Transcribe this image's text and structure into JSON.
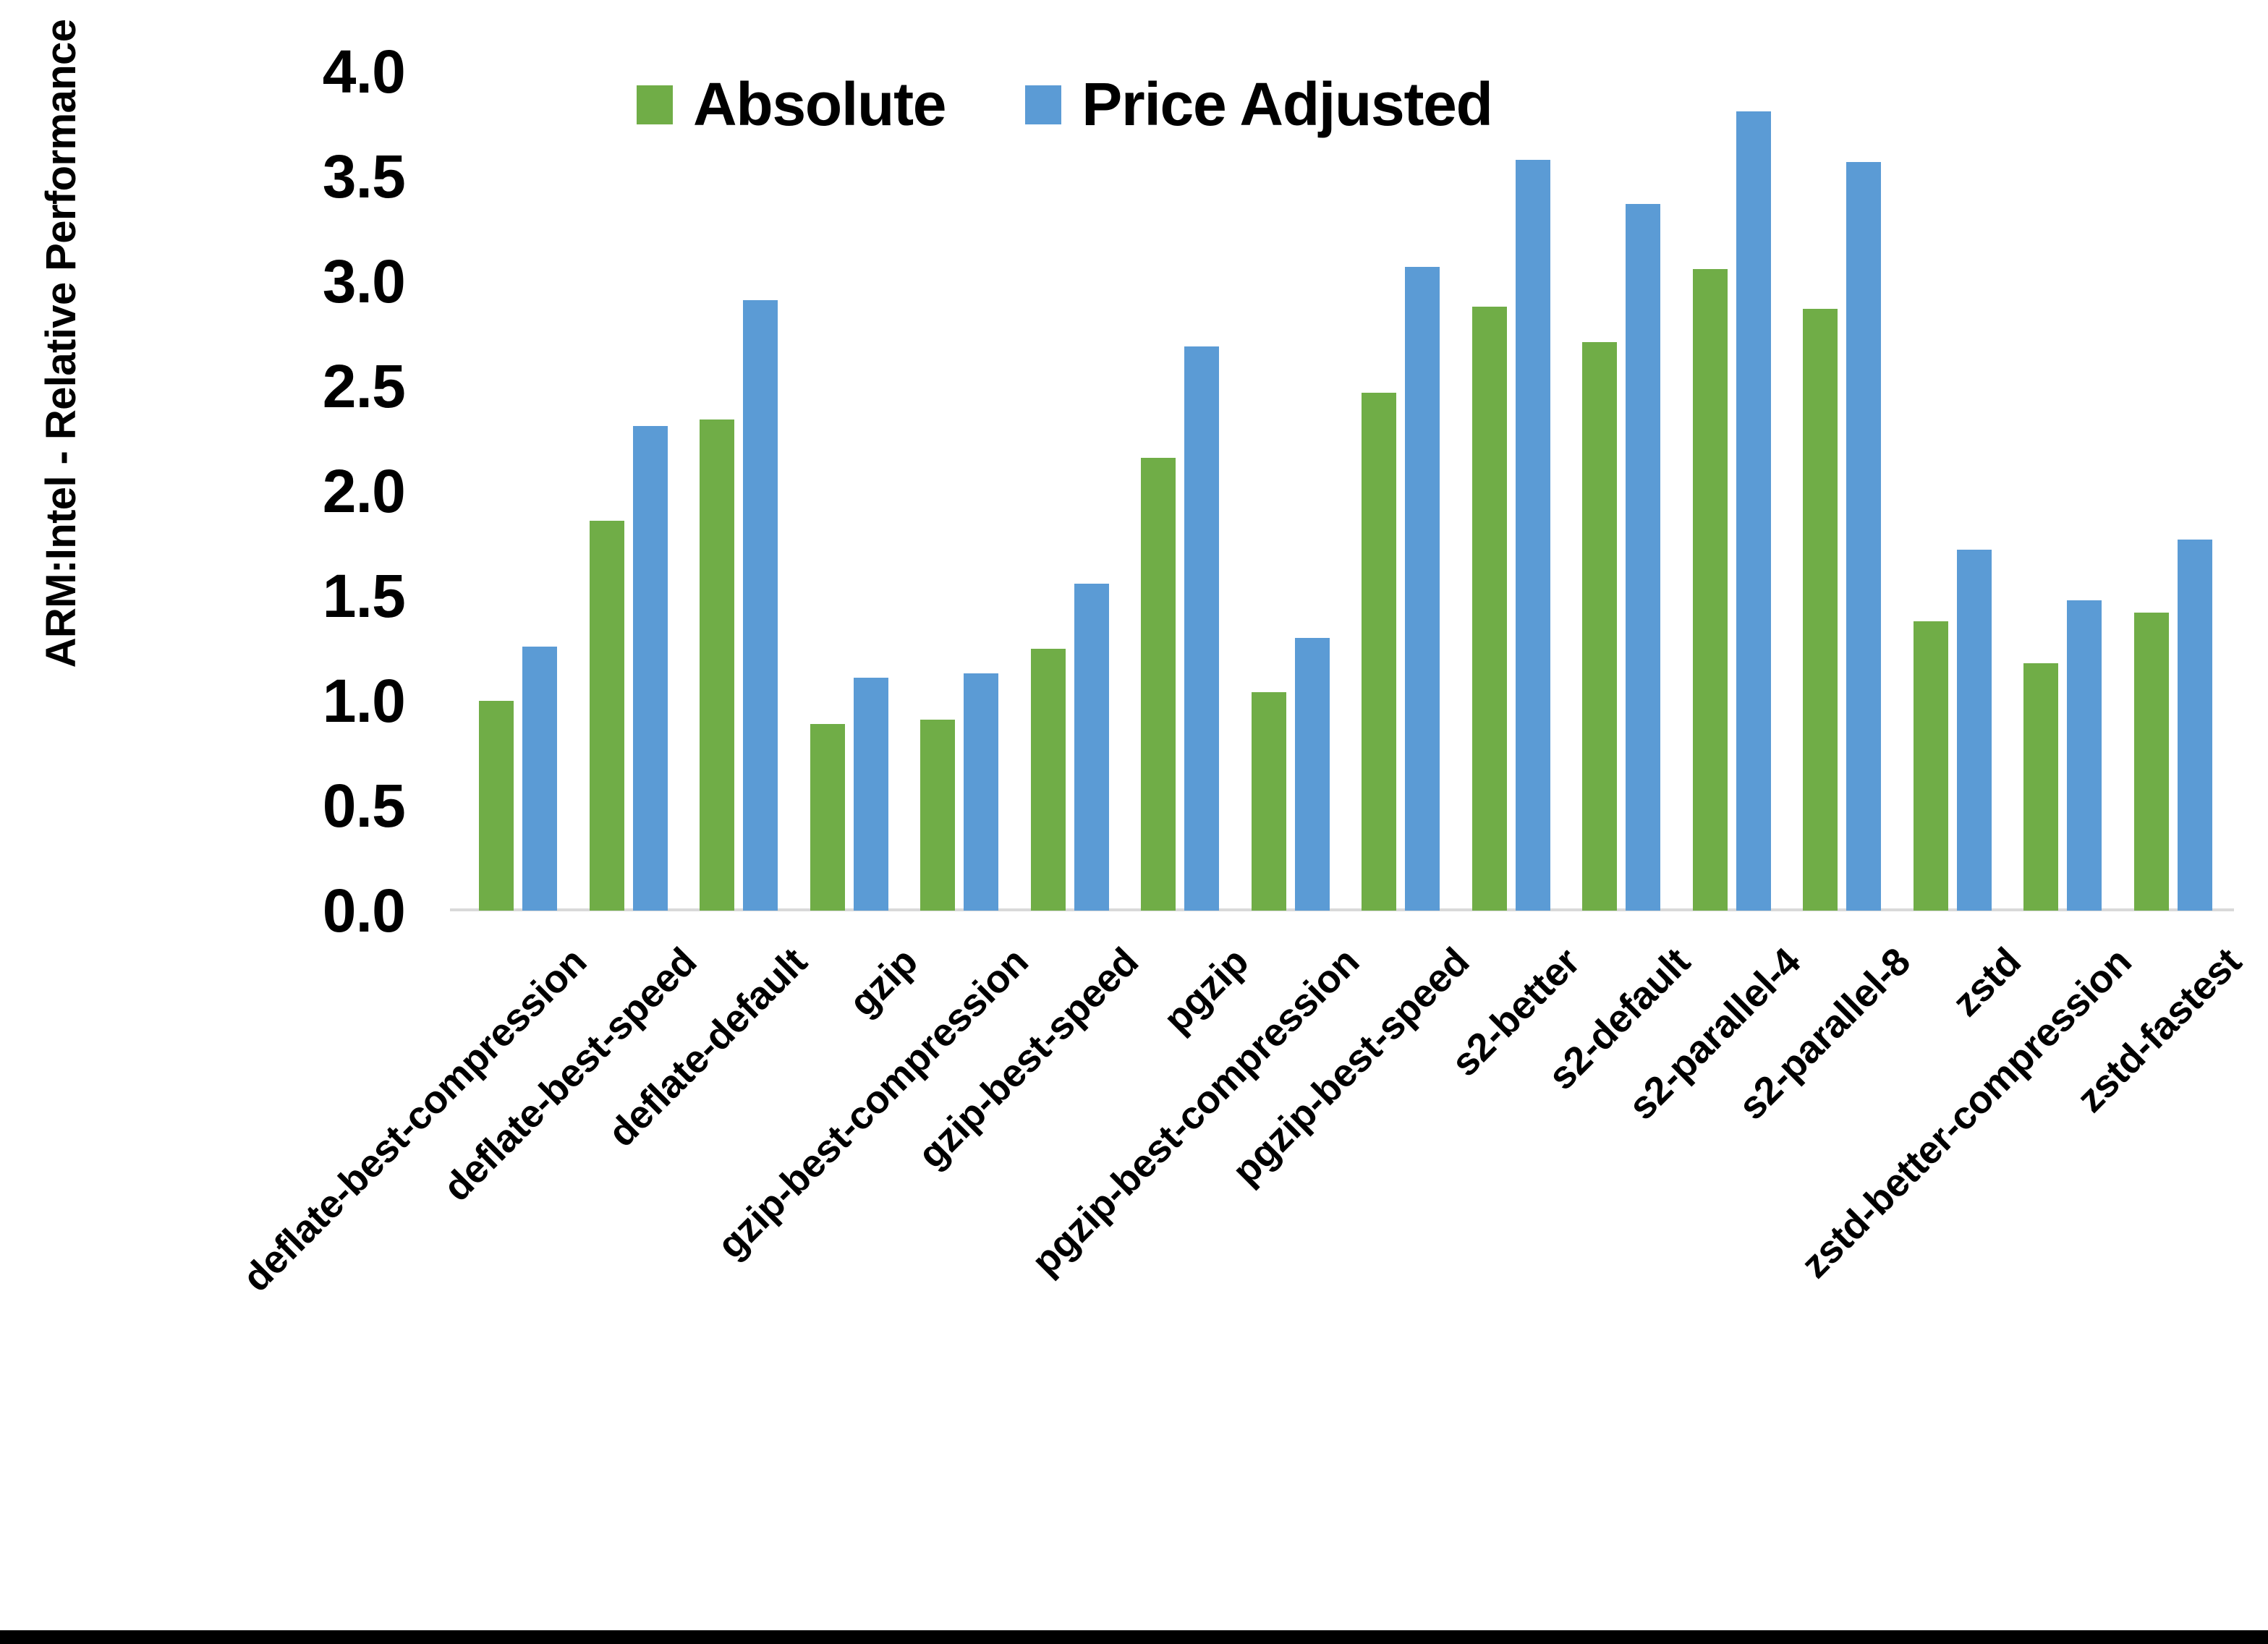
{
  "page": {
    "background": "#ffffff"
  },
  "y_axis": {
    "title": "ARM:Intel - Relative Performance",
    "ticks": [
      "0.0",
      "0.5",
      "1.0",
      "1.5",
      "2.0",
      "2.5",
      "3.0",
      "3.5",
      "4.0"
    ]
  },
  "legend": {
    "items": [
      {
        "label": "Absolute",
        "color": "#70AD47"
      },
      {
        "label": "Price Adjusted",
        "color": "#5B9BD5"
      }
    ]
  },
  "chart_data": {
    "type": "bar",
    "title": "",
    "xlabel": "",
    "ylabel": "ARM:Intel - Relative Performance",
    "ylim": [
      0,
      4.0
    ],
    "ytick_step": 0.5,
    "grid": false,
    "legend_position": "top-center",
    "categories": [
      "deflate-best-compression",
      "deflate-best-speed",
      "deflate-default",
      "gzip",
      "gzip-best-compression",
      "gzip-best-speed",
      "pgzip",
      "pgzip-best-compression",
      "pgzip-best-speed",
      "s2-better",
      "s2-default",
      "s2-parallel-4",
      "s2-parallel-8",
      "zstd",
      "zstd-better-compression",
      "zstd-fastest"
    ],
    "series": [
      {
        "name": "Absolute",
        "color": "#70AD47",
        "values": [
          1.0,
          1.86,
          2.34,
          0.89,
          0.91,
          1.25,
          2.16,
          1.04,
          2.47,
          2.88,
          2.71,
          3.06,
          2.87,
          1.38,
          1.18,
          1.42
        ]
      },
      {
        "name": "Price Adjusted",
        "color": "#5B9BD5",
        "values": [
          1.26,
          2.31,
          2.91,
          1.11,
          1.13,
          1.56,
          2.69,
          1.3,
          3.07,
          3.58,
          3.37,
          3.81,
          3.57,
          1.72,
          1.48,
          1.77
        ]
      }
    ]
  },
  "colors": {
    "axis_line": "#D9D9D9",
    "text": "#000000",
    "bottom_bar": "#000000"
  }
}
